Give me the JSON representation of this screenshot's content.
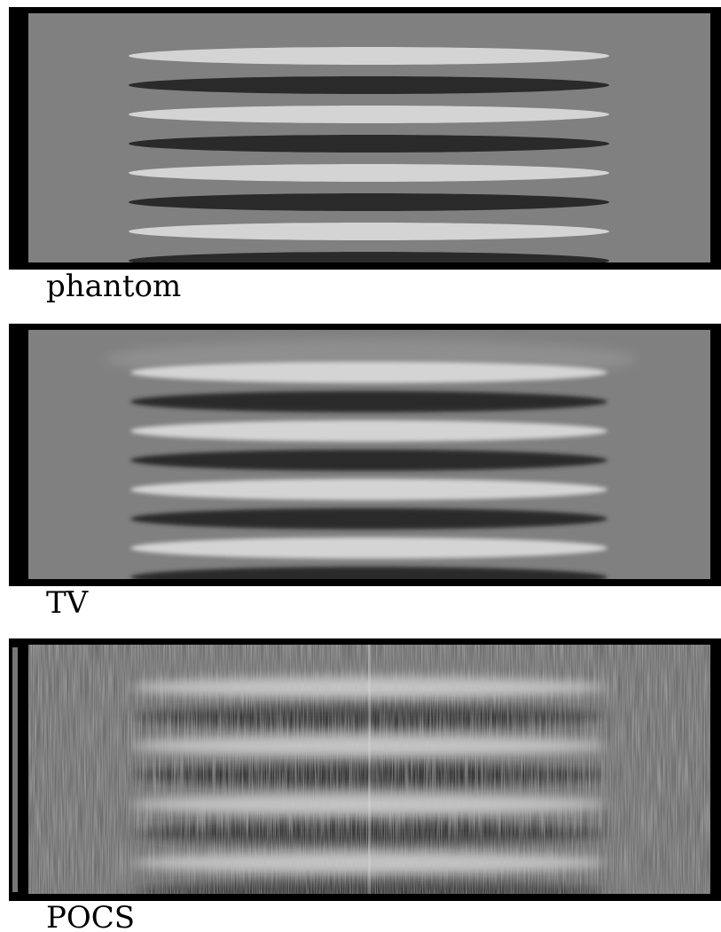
{
  "panels": [
    {
      "label": "phantom"
    },
    {
      "label": "TV"
    },
    {
      "label": "POCS"
    }
  ]
}
